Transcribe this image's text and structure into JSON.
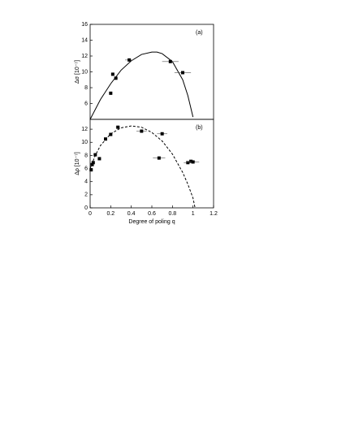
{
  "chart_data": [
    {
      "type": "scatter",
      "panel_label": "(a)",
      "ylabel": "Δσ [10⁻⁷]",
      "xlim": [
        0,
        1.2
      ],
      "ylim": [
        4,
        16
      ],
      "yticks": [
        6,
        8,
        10,
        12,
        14,
        16
      ],
      "points": {
        "x": [
          0.2,
          0.22,
          0.25,
          0.38,
          0.78,
          0.9
        ],
        "y": [
          7.3,
          9.7,
          9.2,
          11.5,
          11.3,
          9.9
        ],
        "xerr": [
          0.015,
          0.015,
          0.015,
          0.04,
          0.08,
          0.08
        ]
      },
      "curve": {
        "x": [
          0,
          0.1,
          0.2,
          0.3,
          0.4,
          0.5,
          0.6,
          0.65,
          0.7,
          0.8,
          0.9,
          0.95,
          1.0
        ],
        "y": [
          4,
          6.5,
          8.5,
          10.2,
          11.4,
          12.2,
          12.5,
          12.5,
          12.3,
          11.3,
          9.0,
          7.0,
          4.3
        ],
        "dashed": false
      }
    },
    {
      "type": "scatter",
      "panel_label": "(b)",
      "ylabel": "Δρ [10⁻⁷]",
      "xlabel": "Degree of poling q",
      "xlim": [
        0,
        1.2
      ],
      "ylim": [
        0,
        13.5
      ],
      "xticks": [
        0,
        0.2,
        0.4,
        0.6,
        0.8,
        1,
        1.2
      ],
      "yticks": [
        0,
        2,
        4,
        6,
        8,
        10,
        12
      ],
      "points": {
        "x": [
          0.01,
          0.02,
          0.03,
          0.05,
          0.09,
          0.15,
          0.2,
          0.27,
          0.5,
          0.7,
          0.67,
          0.95,
          0.98,
          1.0
        ],
        "y": [
          5.8,
          6.6,
          6.9,
          8.1,
          7.5,
          10.5,
          11.2,
          12.3,
          11.7,
          11.3,
          7.6,
          6.9,
          7.1,
          7.0
        ],
        "xerr": [
          0.005,
          0.005,
          0.005,
          0.01,
          0.01,
          0.015,
          0.015,
          0.02,
          0.05,
          0.05,
          0.06,
          0.04,
          0.04,
          0.06
        ]
      },
      "curve": {
        "x": [
          0,
          0.05,
          0.1,
          0.2,
          0.3,
          0.4,
          0.5,
          0.6,
          0.7,
          0.8,
          0.9,
          0.95,
          1.0,
          1.02
        ],
        "y": [
          6.0,
          8.0,
          9.5,
          11.3,
          12.2,
          12.5,
          12.3,
          11.5,
          10.2,
          8.2,
          5.4,
          3.6,
          1.5,
          0
        ],
        "dashed": true
      }
    }
  ]
}
